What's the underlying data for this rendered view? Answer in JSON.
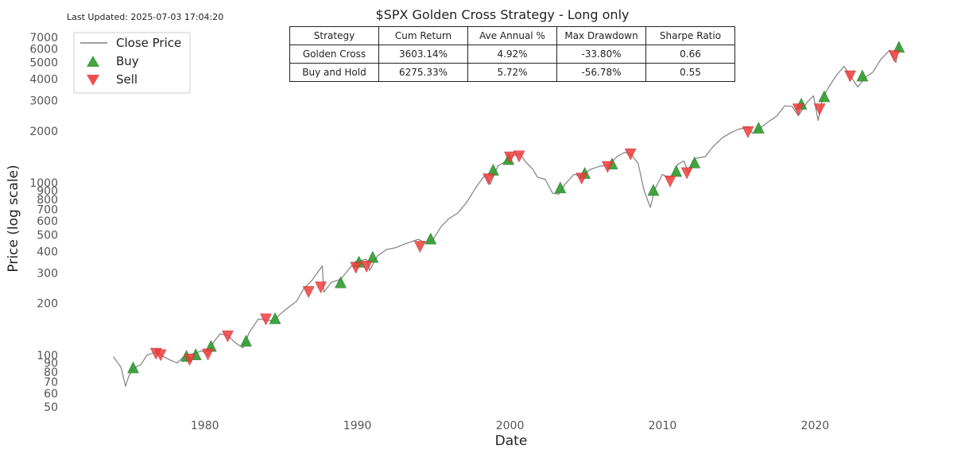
{
  "updated": "Last Updated: 2025-07-03 17:04:20",
  "stats_table": {
    "headers": [
      "Strategy",
      "Cum Return",
      "Ave Annual %",
      "Max Drawdown",
      "Sharpe Ratio"
    ],
    "rows": [
      [
        "Golden Cross",
        "3603.14%",
        "4.92%",
        "-33.80%",
        "0.66"
      ],
      [
        "Buy and Hold",
        "6275.33%",
        "5.72%",
        "-56.78%",
        "0.55"
      ]
    ]
  },
  "chart_data": {
    "type": "line",
    "title": "$SPX Golden Cross Strategy - Long only",
    "xlabel": "Date",
    "ylabel": "Price (log scale)",
    "yscale": "log",
    "xlim": [
      1971.0,
      2029.1
    ],
    "ylim": [
      45,
      8200
    ],
    "x_ticks": [
      1980,
      1990,
      2000,
      2010,
      2020
    ],
    "y_ticks": [
      50,
      60,
      70,
      80,
      90,
      100,
      200,
      300,
      400,
      500,
      600,
      700,
      800,
      900,
      1000,
      2000,
      3000,
      4000,
      5000,
      6000,
      7000
    ],
    "grid": false,
    "legend": {
      "position": "top-left",
      "entries": [
        "Close Price",
        "Buy",
        "Sell"
      ]
    },
    "colors": {
      "close": "#808080",
      "buy": "#2e9a2e",
      "sell": "#f03c3c"
    },
    "series": [
      {
        "name": "Close Price",
        "points": [
          [
            1974.0,
            98
          ],
          [
            1974.5,
            85
          ],
          [
            1974.8,
            66
          ],
          [
            1975.0,
            75
          ],
          [
            1975.3,
            84
          ],
          [
            1975.8,
            88
          ],
          [
            1976.2,
            100
          ],
          [
            1976.8,
            104
          ],
          [
            1977.3,
            98
          ],
          [
            1977.8,
            93
          ],
          [
            1978.2,
            90
          ],
          [
            1978.7,
            100
          ],
          [
            1979.3,
            102
          ],
          [
            1979.8,
            106
          ],
          [
            1980.2,
            100
          ],
          [
            1980.6,
            120
          ],
          [
            1981.0,
            133
          ],
          [
            1981.5,
            130
          ],
          [
            1982.0,
            118
          ],
          [
            1982.5,
            110
          ],
          [
            1982.9,
            135
          ],
          [
            1983.5,
            162
          ],
          [
            1984.0,
            160
          ],
          [
            1984.5,
            158
          ],
          [
            1985.0,
            175
          ],
          [
            1985.5,
            190
          ],
          [
            1986.0,
            205
          ],
          [
            1986.5,
            245
          ],
          [
            1987.0,
            270
          ],
          [
            1987.7,
            330
          ],
          [
            1987.8,
            232
          ],
          [
            1988.3,
            265
          ],
          [
            1988.9,
            275
          ],
          [
            1989.5,
            320
          ],
          [
            1989.9,
            350
          ],
          [
            1990.6,
            360
          ],
          [
            1990.8,
            310
          ],
          [
            1991.3,
            375
          ],
          [
            1991.9,
            410
          ],
          [
            1992.5,
            420
          ],
          [
            1993.2,
            445
          ],
          [
            1994.0,
            470
          ],
          [
            1994.4,
            450
          ],
          [
            1994.9,
            460
          ],
          [
            1995.5,
            560
          ],
          [
            1996.0,
            620
          ],
          [
            1996.6,
            670
          ],
          [
            1997.2,
            780
          ],
          [
            1997.8,
            950
          ],
          [
            1998.4,
            1120
          ],
          [
            1998.7,
            980
          ],
          [
            1999.2,
            1250
          ],
          [
            1999.7,
            1330
          ],
          [
            2000.2,
            1440
          ],
          [
            2000.7,
            1470
          ],
          [
            2001.0,
            1330
          ],
          [
            2001.5,
            1200
          ],
          [
            2001.8,
            1080
          ],
          [
            2002.3,
            1050
          ],
          [
            2002.8,
            870
          ],
          [
            2003.2,
            860
          ],
          [
            2003.6,
            980
          ],
          [
            2004.2,
            1120
          ],
          [
            2004.7,
            1100
          ],
          [
            2005.3,
            1200
          ],
          [
            2005.9,
            1250
          ],
          [
            2006.5,
            1270
          ],
          [
            2007.0,
            1420
          ],
          [
            2007.5,
            1500
          ],
          [
            2007.9,
            1480
          ],
          [
            2008.4,
            1300
          ],
          [
            2008.8,
            900
          ],
          [
            2009.2,
            720
          ],
          [
            2009.5,
            920
          ],
          [
            2010.0,
            1120
          ],
          [
            2010.5,
            1060
          ],
          [
            2011.0,
            1280
          ],
          [
            2011.4,
            1340
          ],
          [
            2011.7,
            1150
          ],
          [
            2012.2,
            1390
          ],
          [
            2012.8,
            1420
          ],
          [
            2013.3,
            1620
          ],
          [
            2013.9,
            1820
          ],
          [
            2014.5,
            1960
          ],
          [
            2015.0,
            2050
          ],
          [
            2015.6,
            2100
          ],
          [
            2015.9,
            1940
          ],
          [
            2016.4,
            2080
          ],
          [
            2016.9,
            2250
          ],
          [
            2017.5,
            2450
          ],
          [
            2018.0,
            2800
          ],
          [
            2018.5,
            2780
          ],
          [
            2018.9,
            2450
          ],
          [
            2019.5,
            2950
          ],
          [
            2019.9,
            3200
          ],
          [
            2020.2,
            2300
          ],
          [
            2020.5,
            3100
          ],
          [
            2020.9,
            3600
          ],
          [
            2021.4,
            4200
          ],
          [
            2021.9,
            4750
          ],
          [
            2022.3,
            4200
          ],
          [
            2022.8,
            3600
          ],
          [
            2023.3,
            4100
          ],
          [
            2023.8,
            4400
          ],
          [
            2024.3,
            5200
          ],
          [
            2024.9,
            5900
          ],
          [
            2025.3,
            5000
          ],
          [
            2025.5,
            6200
          ]
        ]
      }
    ],
    "buy_signals": [
      [
        1975.3,
        84
      ],
      [
        1978.8,
        98
      ],
      [
        1979.4,
        100
      ],
      [
        1980.4,
        112
      ],
      [
        1982.7,
        120
      ],
      [
        1984.6,
        162
      ],
      [
        1988.9,
        262
      ],
      [
        1990.1,
        345
      ],
      [
        1991.0,
        368
      ],
      [
        1994.8,
        470
      ],
      [
        1998.9,
        1180
      ],
      [
        1999.9,
        1360
      ],
      [
        2003.3,
        930
      ],
      [
        2004.9,
        1130
      ],
      [
        2006.7,
        1280
      ],
      [
        2009.4,
        900
      ],
      [
        2010.9,
        1160
      ],
      [
        2012.1,
        1300
      ],
      [
        2016.3,
        2070
      ],
      [
        2019.1,
        2850
      ],
      [
        2020.6,
        3150
      ],
      [
        2023.1,
        4150
      ],
      [
        2025.5,
        6100
      ]
    ],
    "sell_signals": [
      [
        1976.8,
        103
      ],
      [
        1977.1,
        101
      ],
      [
        1979.0,
        95
      ],
      [
        1980.2,
        102
      ],
      [
        1981.5,
        130
      ],
      [
        1984.0,
        163
      ],
      [
        1986.8,
        235
      ],
      [
        1987.6,
        250
      ],
      [
        1989.9,
        325
      ],
      [
        1990.6,
        330
      ],
      [
        1994.1,
        430
      ],
      [
        1998.6,
        1060
      ],
      [
        2000.0,
        1420
      ],
      [
        2000.6,
        1440
      ],
      [
        2004.7,
        1070
      ],
      [
        2006.4,
        1250
      ],
      [
        2007.9,
        1480
      ],
      [
        2010.5,
        1030
      ],
      [
        2011.6,
        1150
      ],
      [
        2015.6,
        1990
      ],
      [
        2018.9,
        2700
      ],
      [
        2020.3,
        2700
      ],
      [
        2022.3,
        4200
      ],
      [
        2025.2,
        5500
      ]
    ]
  }
}
